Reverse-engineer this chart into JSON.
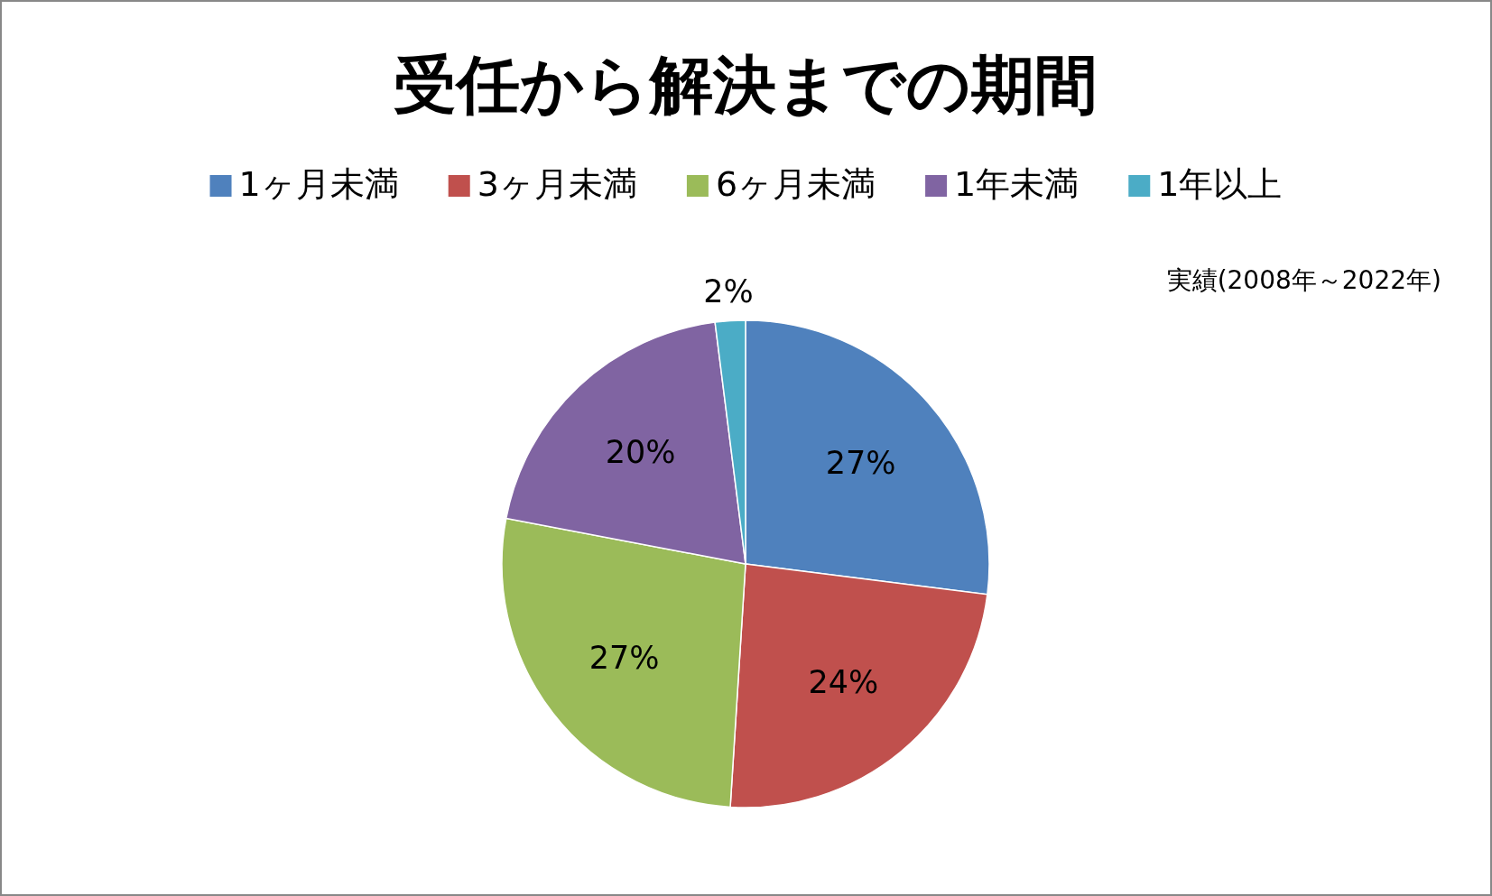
{
  "chart_data": {
    "type": "pie",
    "title": "受任から解決までの期間",
    "categories": [
      "1ヶ月未満",
      "3ヶ月未満",
      "6ヶ月未満",
      "1年未満",
      "1年以上"
    ],
    "values": [
      27,
      24,
      27,
      20,
      2
    ],
    "colors": [
      "#4f81bd",
      "#c0504d",
      "#9bbb59",
      "#8064a2",
      "#4bacc6"
    ],
    "value_labels": [
      "27%",
      "24%",
      "27%",
      "20%",
      "2%"
    ],
    "legend": "top",
    "annotations": [
      "実績(2008年～2022年)"
    ]
  }
}
